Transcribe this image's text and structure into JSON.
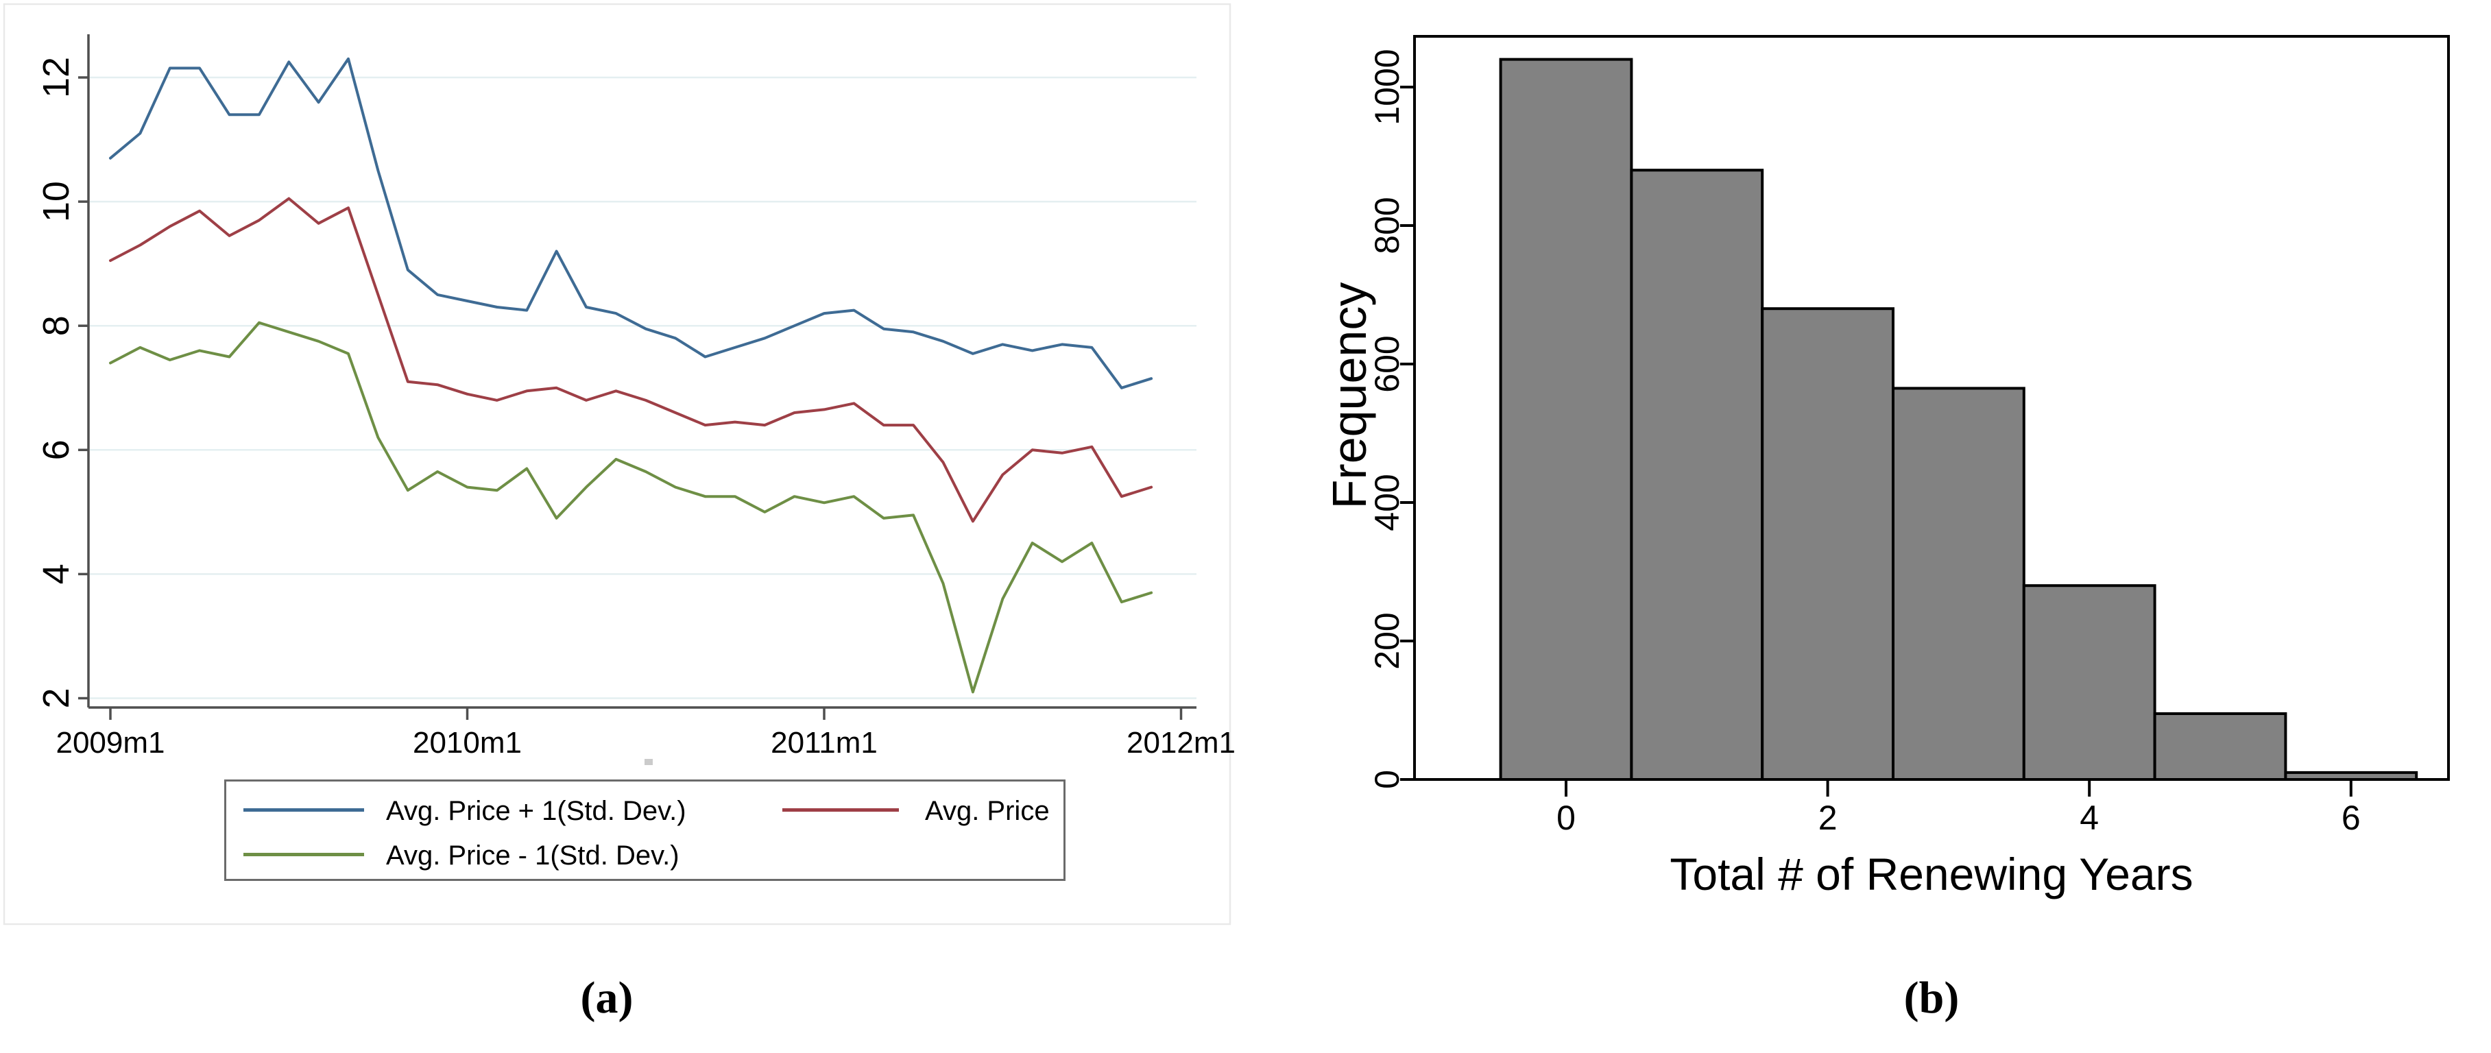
{
  "captions": {
    "a": "(a)",
    "b": "(b)"
  },
  "colors": {
    "series_plus": "#3e6b94",
    "series_avg": "#9e3f46",
    "series_minus": "#6e8f45",
    "gridline": "#e4eff1",
    "axis_a": "#4f4f4f",
    "axis_b": "#000000",
    "bar_fill": "#828282",
    "legend_border": "#6b6b6b",
    "figure_border": "#e9e9e9"
  },
  "chart_data": [
    {
      "type": "line",
      "panel": "a",
      "title": "",
      "xlabel": "",
      "ylabel": "",
      "grid": "horizontal",
      "x_unit": "month",
      "n_months": 36,
      "x_range_labels": [
        "2009m1",
        "2012m1"
      ],
      "x_tick_labels": [
        "2009m1",
        "2010m1",
        "2011m1",
        "2012m1"
      ],
      "x_tick_month_index": [
        0,
        12,
        24,
        36
      ],
      "y_ticks": [
        2,
        4,
        6,
        8,
        10,
        12
      ],
      "ylim": [
        1.8,
        12.6
      ],
      "legend_position": "bottom-box",
      "series": [
        {
          "name": "Avg. Price + 1(Std. Dev.)",
          "color": "#3e6b94",
          "values": [
            10.7,
            11.1,
            12.15,
            12.15,
            11.4,
            11.4,
            12.25,
            11.6,
            12.3,
            10.5,
            8.9,
            8.5,
            8.4,
            8.3,
            8.25,
            9.2,
            8.3,
            8.2,
            7.95,
            7.8,
            7.5,
            7.65,
            7.8,
            8.0,
            8.2,
            8.25,
            7.95,
            7.9,
            7.75,
            7.55,
            7.7,
            7.6,
            7.7,
            7.65,
            7.0,
            7.15
          ]
        },
        {
          "name": "Avg. Price",
          "color": "#9e3f46",
          "values": [
            9.05,
            9.3,
            9.6,
            9.85,
            9.45,
            9.7,
            10.05,
            9.65,
            9.9,
            8.5,
            7.1,
            7.05,
            6.9,
            6.8,
            6.95,
            7.0,
            6.8,
            6.95,
            6.8,
            6.6,
            6.4,
            6.45,
            6.4,
            6.6,
            6.65,
            6.75,
            6.4,
            6.4,
            5.8,
            4.85,
            5.6,
            6.0,
            5.95,
            6.05,
            5.25,
            5.4
          ]
        },
        {
          "name": "Avg. Price - 1(Std. Dev.)",
          "color": "#6e8f45",
          "values": [
            7.4,
            7.65,
            7.45,
            7.6,
            7.5,
            8.05,
            7.9,
            7.75,
            7.55,
            6.2,
            5.35,
            5.65,
            5.4,
            5.35,
            5.7,
            4.9,
            5.4,
            5.85,
            5.65,
            5.4,
            5.25,
            5.25,
            5.0,
            5.25,
            5.15,
            5.25,
            4.9,
            4.95,
            3.85,
            2.1,
            3.6,
            4.5,
            4.2,
            4.5,
            3.55,
            3.7
          ]
        }
      ]
    },
    {
      "type": "bar",
      "subtype": "histogram",
      "panel": "b",
      "title": "",
      "xlabel": "Total # of Renewing Years",
      "ylabel": "Frequency",
      "categories": [
        0,
        1,
        2,
        3,
        4,
        5,
        6
      ],
      "values": [
        1040,
        880,
        680,
        565,
        280,
        95,
        10
      ],
      "x_ticks": [
        0,
        2,
        4,
        6
      ],
      "y_ticks": [
        0,
        200,
        400,
        600,
        800,
        1000
      ],
      "ylim": [
        0,
        1073
      ],
      "bar_width": 1,
      "bar_color": "#828282",
      "bar_border": "#000000",
      "grid": "off",
      "frame": "box"
    }
  ]
}
